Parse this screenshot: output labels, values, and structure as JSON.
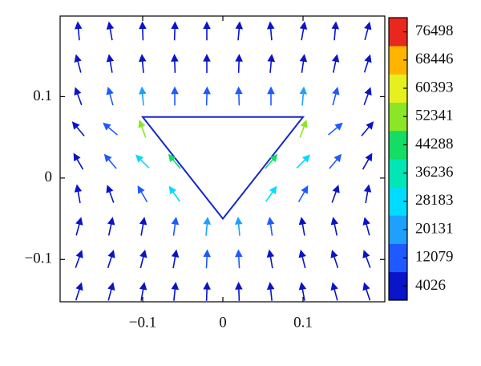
{
  "chart_data": {
    "type": "quiver",
    "xlim": [
      -0.203,
      0.202
    ],
    "ylim": [
      -0.152,
      0.199
    ],
    "xticks": [
      {
        "value": -0.1,
        "label": "−0.1"
      },
      0,
      0.1
    ],
    "yticks": [
      {
        "value": -0.1,
        "label": "−0.1"
      },
      0,
      0.1
    ],
    "obstacle": [
      [
        -0.1,
        0.075
      ],
      [
        0.1,
        0.075
      ],
      [
        0,
        -0.05
      ]
    ],
    "obstacle_color": "#1428c8",
    "x": [
      -0.18,
      -0.14,
      -0.1,
      -0.06,
      -0.02,
      0.02,
      0.06,
      0.1,
      0.14,
      0.18,
      -0.18,
      -0.14,
      -0.1,
      -0.06,
      -0.02,
      0.02,
      0.06,
      0.1,
      0.14,
      0.18,
      -0.18,
      -0.14,
      -0.1,
      -0.06,
      -0.02,
      0.02,
      0.06,
      0.1,
      0.14,
      0.18,
      -0.18,
      -0.14,
      -0.1,
      0.1,
      0.14,
      0.18,
      -0.18,
      -0.14,
      -0.1,
      -0.06,
      0.06,
      0.1,
      0.14,
      0.18,
      -0.18,
      -0.14,
      -0.1,
      -0.06,
      0.06,
      0.1,
      0.14,
      0.18,
      -0.18,
      -0.14,
      -0.1,
      -0.06,
      -0.02,
      0.02,
      0.06,
      0.1,
      0.14,
      0.18,
      -0.18,
      -0.14,
      -0.1,
      -0.06,
      -0.02,
      0.02,
      0.06,
      0.1,
      0.14,
      0.18,
      -0.18,
      -0.14,
      -0.1,
      -0.06,
      -0.02,
      0.02,
      0.06,
      0.1,
      0.14,
      0.18
    ],
    "y": [
      0.18,
      0.18,
      0.18,
      0.18,
      0.18,
      0.18,
      0.18,
      0.18,
      0.18,
      0.18,
      0.14,
      0.14,
      0.14,
      0.14,
      0.14,
      0.14,
      0.14,
      0.14,
      0.14,
      0.14,
      0.1,
      0.1,
      0.1,
      0.1,
      0.1,
      0.1,
      0.1,
      0.1,
      0.1,
      0.1,
      0.06,
      0.06,
      0.06,
      0.06,
      0.06,
      0.06,
      0.02,
      0.02,
      0.02,
      0.02,
      0.02,
      0.02,
      0.02,
      0.02,
      -0.02,
      -0.02,
      -0.02,
      -0.02,
      -0.02,
      -0.02,
      -0.02,
      -0.02,
      -0.06,
      -0.06,
      -0.06,
      -0.06,
      -0.06,
      -0.06,
      -0.06,
      -0.06,
      -0.06,
      -0.06,
      -0.1,
      -0.1,
      -0.1,
      -0.1,
      -0.1,
      -0.1,
      -0.1,
      -0.1,
      -0.1,
      -0.1,
      -0.14,
      -0.14,
      -0.14,
      -0.14,
      -0.14,
      -0.14,
      -0.14,
      -0.14,
      -0.14,
      -0.14
    ],
    "angle": [
      95,
      100,
      92,
      88,
      90,
      85,
      95,
      80,
      85,
      75,
      105,
      100,
      95,
      92,
      90,
      88,
      85,
      82,
      78,
      72,
      110,
      105,
      95,
      90,
      88,
      92,
      90,
      85,
      75,
      70,
      130,
      140,
      110,
      70,
      40,
      50,
      120,
      130,
      135,
      130,
      50,
      45,
      50,
      60,
      100,
      110,
      120,
      125,
      55,
      60,
      70,
      80,
      75,
      78,
      80,
      82,
      85,
      95,
      98,
      100,
      102,
      105,
      70,
      72,
      76,
      80,
      87,
      93,
      100,
      104,
      108,
      110,
      72,
      75,
      80,
      84,
      88,
      92,
      96,
      100,
      105,
      108
    ],
    "magnitude": [
      3000,
      4000,
      5000,
      4500,
      4000,
      4000,
      5000,
      4500,
      4000,
      3500,
      4500,
      5000,
      7000,
      6000,
      5000,
      5000,
      6000,
      7000,
      5000,
      4500,
      5000,
      9000,
      22000,
      12000,
      9000,
      9000,
      12000,
      22000,
      9000,
      5000,
      6000,
      15000,
      55000,
      50000,
      15000,
      6000,
      5000,
      12000,
      30000,
      45000,
      45000,
      30000,
      12000,
      5000,
      4500,
      8000,
      14000,
      25000,
      25000,
      14000,
      8000,
      4500,
      4000,
      5000,
      7000,
      12000,
      20000,
      20000,
      12000,
      7000,
      5000,
      4000,
      3500,
      4000,
      5000,
      7000,
      10000,
      10000,
      7000,
      5000,
      4000,
      3500,
      3000,
      3500,
      4000,
      5000,
      6000,
      6000,
      5000,
      4000,
      3500,
      3000
    ],
    "colorbar": {
      "clim": [
        0,
        80522
      ],
      "ticks": [
        4026,
        12079,
        20131,
        28183,
        36236,
        44288,
        52341,
        60393,
        68446,
        76498
      ],
      "colors": [
        "#0a14c8",
        "#1e5aff",
        "#1ea0ff",
        "#00dcff",
        "#00e6b4",
        "#14dc64",
        "#8ce628",
        "#e6f01e",
        "#ffb400",
        "#e8281e"
      ]
    }
  }
}
